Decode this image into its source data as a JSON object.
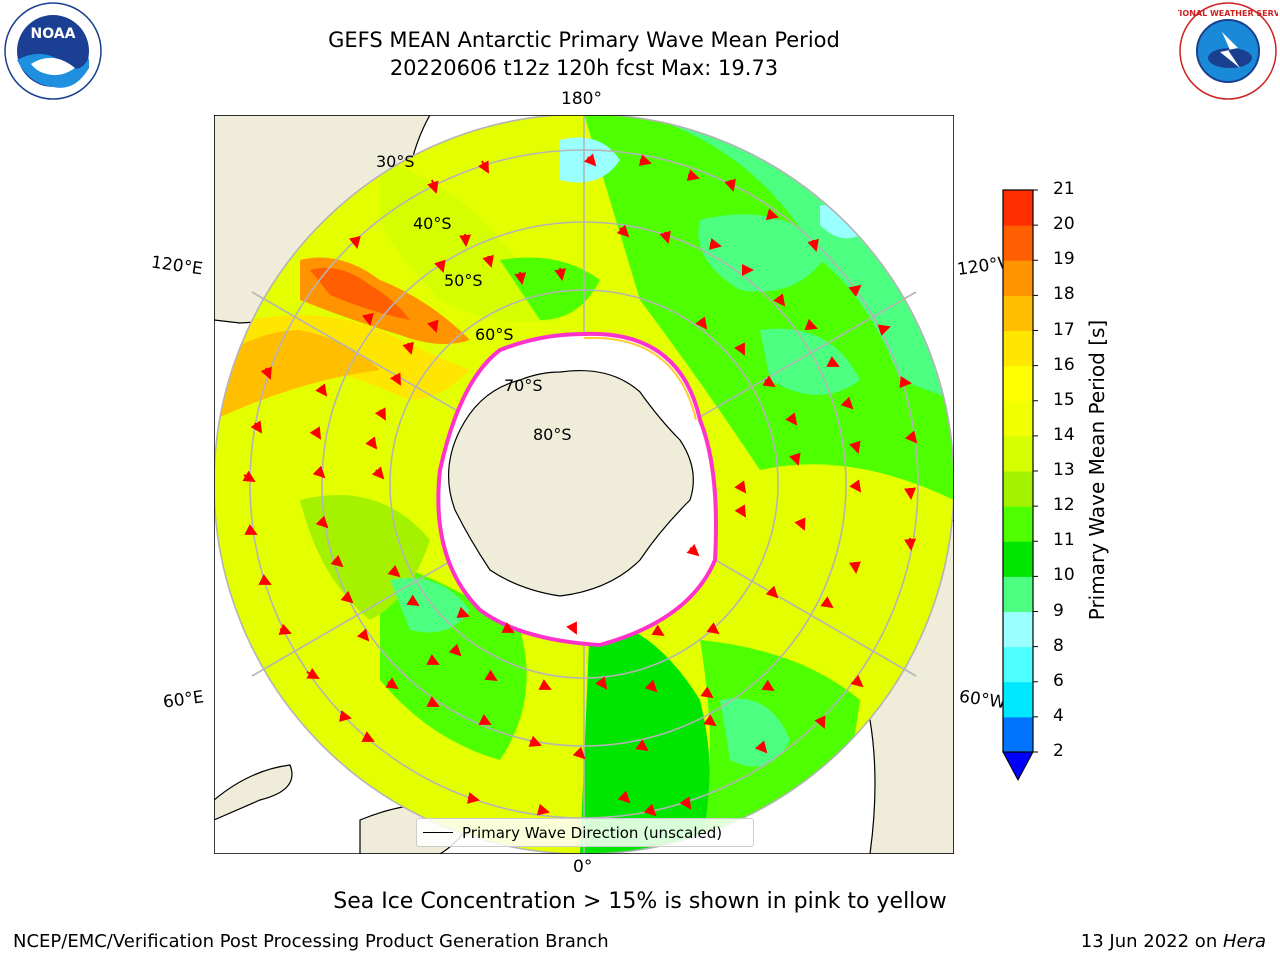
{
  "header": {
    "title_line1": "GEFS MEAN Antarctic Primary Wave Mean Period",
    "title_line2": "20220606 t12z 120h fcst   Max: 19.73"
  },
  "logos": {
    "noaa": {
      "icon": "noaa-logo",
      "text": "NOAA"
    },
    "nws": {
      "icon": "nws-logo",
      "text": "NATIONAL WEATHER SERVICE"
    }
  },
  "map": {
    "projection": "south-polar-stereographic",
    "longitude_labels": {
      "top": "180°",
      "bottom": "0°",
      "upper_left": "120°E",
      "upper_right": "120°W",
      "lower_left": "60°E",
      "lower_right": "60°W"
    },
    "latitude_labels": [
      "30°S",
      "40°S",
      "50°S",
      "60°S",
      "70°S",
      "80°S"
    ],
    "vector_color": "#ff0000",
    "ice_edge_colors": [
      "#ff33cc",
      "#ffcc33"
    ],
    "land_color": "#efedd9"
  },
  "legend": {
    "label": "Primary Wave Direction (unscaled)"
  },
  "colorbar": {
    "label": "Primary Wave Mean Period [s]",
    "ticks": [
      "2",
      "4",
      "6",
      "8",
      "9",
      "10",
      "11",
      "12",
      "13",
      "14",
      "15",
      "16",
      "17",
      "18",
      "19",
      "20",
      "21"
    ],
    "colors": [
      "#0073ff",
      "#00e8ff",
      "#4dffff",
      "#99ffff",
      "#4dff80",
      "#00e600",
      "#4dff00",
      "#a5f200",
      "#d5ff00",
      "#f2ff00",
      "#ffff00",
      "#ffe600",
      "#ffbf00",
      "#ff9400",
      "#ff5f00",
      "#ff2e00"
    ],
    "extend_color": "#0000ff"
  },
  "caption": "Sea Ice Concentration > 15% is shown in pink to yellow",
  "footer": {
    "left": "NCEP/EMC/Verification Post Processing Product Generation Branch",
    "right_date": "13 Jun 2022 on ",
    "right_host": "Hera"
  }
}
